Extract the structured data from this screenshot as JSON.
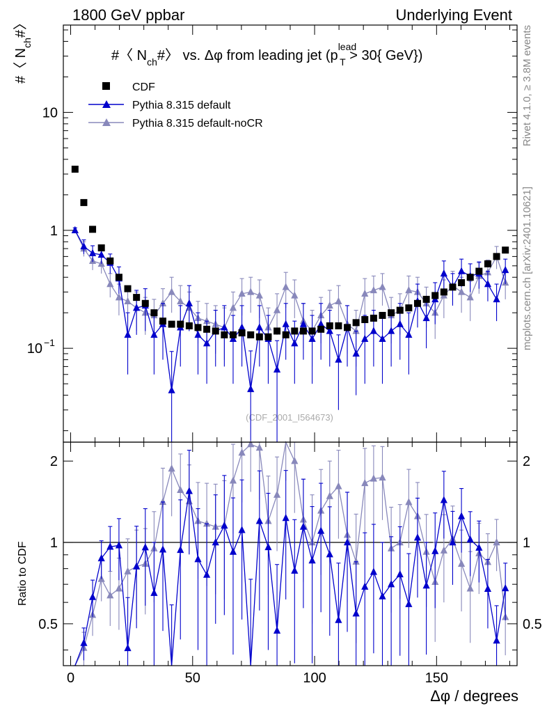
{
  "header": {
    "left": "1800 GeV ppbar",
    "right": "Underlying Event"
  },
  "side": {
    "top": "Rivet 4.1.0, ≥ 3.8M events",
    "bottom": "mcplots.cern.ch [arXiv:2401.10621]"
  },
  "chart_data": [
    {
      "type": "scatter",
      "title_parts": [
        "#〈 N",
        "ch",
        "#〉 vs. Δφ from leading jet  (p",
        "lead",
        "T",
        " > 30{ GeV})"
      ],
      "ylabel_parts": [
        "#〈 N",
        "ch",
        "#〉"
      ],
      "yscale": "log",
      "ylim": [
        0.016,
        55
      ],
      "xlim": [
        -3,
        183
      ],
      "ytick_labels": [
        {
          "value": 10,
          "label": "10"
        },
        {
          "value": 1,
          "label": "1"
        },
        {
          "value": 0.1,
          "label": "10",
          "exp": "−1"
        }
      ],
      "analysis_label": "(CDF_2001_I564673)",
      "legend": {
        "placement": "top-left",
        "entries": [
          {
            "name": "CDF",
            "marker": "square",
            "color": "#000000"
          },
          {
            "name": "Pythia 8.315 default",
            "marker": "triangle",
            "color": "#0000cc"
          },
          {
            "name": "Pythia 8.315 default-noCR",
            "marker": "triangle",
            "color": "#8888bb"
          }
        ]
      },
      "x": [
        1.8,
        5.4,
        9.0,
        12.6,
        16.2,
        19.8,
        23.4,
        27.0,
        30.6,
        34.2,
        37.8,
        41.4,
        45.0,
        48.6,
        52.2,
        55.8,
        59.4,
        63.0,
        66.6,
        70.2,
        73.8,
        77.4,
        81.0,
        84.6,
        88.2,
        91.8,
        95.4,
        99.0,
        102.6,
        106.2,
        109.8,
        113.4,
        117.0,
        120.6,
        124.2,
        127.8,
        131.4,
        135.0,
        138.6,
        142.2,
        145.8,
        149.4,
        153.0,
        156.6,
        160.2,
        163.8,
        167.4,
        171.0,
        174.6,
        178.2
      ],
      "series": [
        {
          "name": "CDF",
          "values": [
            3.3,
            1.72,
            1.02,
            0.71,
            0.55,
            0.4,
            0.32,
            0.27,
            0.24,
            0.2,
            0.17,
            0.16,
            0.16,
            0.155,
            0.15,
            0.145,
            0.14,
            0.13,
            0.13,
            0.135,
            0.13,
            0.125,
            0.125,
            0.14,
            0.13,
            0.14,
            0.14,
            0.14,
            0.145,
            0.155,
            0.155,
            0.15,
            0.165,
            0.175,
            0.18,
            0.19,
            0.2,
            0.21,
            0.22,
            0.24,
            0.26,
            0.28,
            0.3,
            0.33,
            0.36,
            0.4,
            0.45,
            0.52,
            0.6,
            0.68
          ]
        },
        {
          "name": "Pythia 8.315 default",
          "values": [
            1.0,
            0.73,
            0.64,
            0.62,
            0.53,
            0.39,
            0.13,
            0.22,
            0.23,
            0.13,
            0.16,
            0.044,
            0.15,
            0.24,
            0.13,
            0.11,
            0.14,
            0.15,
            0.12,
            0.15,
            0.045,
            0.15,
            0.12,
            0.066,
            0.16,
            0.11,
            0.16,
            0.12,
            0.16,
            0.14,
            0.08,
            0.15,
            0.09,
            0.12,
            0.14,
            0.12,
            0.14,
            0.16,
            0.13,
            0.25,
            0.18,
            0.26,
            0.43,
            0.33,
            0.45,
            0.41,
            0.43,
            0.35,
            0.26,
            0.46
          ],
          "errors": [
            0.05,
            0.1,
            0.1,
            0.1,
            0.1,
            0.1,
            0.07,
            0.09,
            0.09,
            0.07,
            0.08,
            0.05,
            0.08,
            0.1,
            0.07,
            0.06,
            0.07,
            0.08,
            0.07,
            0.08,
            0.05,
            0.08,
            0.07,
            0.05,
            0.08,
            0.06,
            0.08,
            0.07,
            0.08,
            0.07,
            0.05,
            0.08,
            0.05,
            0.07,
            0.07,
            0.07,
            0.07,
            0.08,
            0.07,
            0.1,
            0.08,
            0.1,
            0.12,
            0.1,
            0.12,
            0.11,
            0.11,
            0.1,
            0.09,
            0.11
          ]
        },
        {
          "name": "Pythia 8.315 default-noCR",
          "values": [
            1.0,
            0.7,
            0.55,
            0.52,
            0.35,
            0.27,
            0.25,
            0.22,
            0.2,
            0.19,
            0.24,
            0.3,
            0.25,
            0.22,
            0.18,
            0.17,
            0.16,
            0.15,
            0.22,
            0.29,
            0.3,
            0.28,
            0.15,
            0.21,
            0.33,
            0.28,
            0.17,
            0.14,
            0.19,
            0.23,
            0.25,
            0.16,
            0.14,
            0.29,
            0.31,
            0.33,
            0.19,
            0.21,
            0.31,
            0.3,
            0.24,
            0.2,
            0.28,
            0.34,
            0.3,
            0.27,
            0.41,
            0.44,
            0.6,
            0.36
          ],
          "errors": [
            0.05,
            0.1,
            0.09,
            0.09,
            0.08,
            0.08,
            0.08,
            0.08,
            0.07,
            0.07,
            0.08,
            0.1,
            0.09,
            0.08,
            0.07,
            0.07,
            0.07,
            0.07,
            0.08,
            0.1,
            0.1,
            0.1,
            0.07,
            0.08,
            0.11,
            0.1,
            0.07,
            0.07,
            0.08,
            0.08,
            0.09,
            0.07,
            0.07,
            0.1,
            0.1,
            0.1,
            0.08,
            0.08,
            0.1,
            0.1,
            0.09,
            0.08,
            0.1,
            0.11,
            0.1,
            0.1,
            0.12,
            0.12,
            0.13,
            0.1
          ]
        }
      ]
    },
    {
      "type": "scatter",
      "ylabel": "Ratio to CDF",
      "yscale": "log",
      "ylim": [
        0.35,
        2.35
      ],
      "xlim": [
        -3,
        183
      ],
      "xlabel": "Δφ / degrees",
      "xticks": [
        0,
        50,
        100,
        150
      ],
      "ytick_labels": [
        {
          "value": 2,
          "label": "2"
        },
        {
          "value": 1,
          "label": "1"
        },
        {
          "value": 0.5,
          "label": "0.5"
        }
      ],
      "reference_line": 1
    }
  ]
}
